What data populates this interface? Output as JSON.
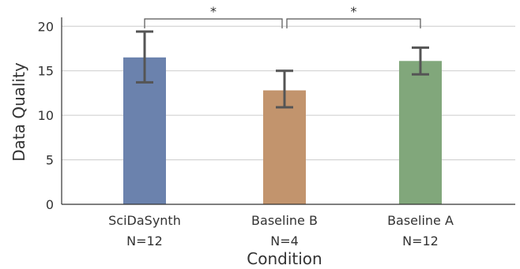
{
  "chart_data": {
    "type": "bar",
    "title": "",
    "xlabel": "Condition",
    "ylabel": "Data Quality",
    "ylim": [
      0,
      21
    ],
    "yticks": [
      0,
      5,
      10,
      15,
      20
    ],
    "grid": true,
    "categories": [
      {
        "name": "SciDaSynth",
        "n_label": "N=12",
        "value": 16.5,
        "err_low": 13.7,
        "err_high": 19.4,
        "color": "#6b82ad"
      },
      {
        "name": "Baseline B",
        "n_label": "N=4",
        "value": 12.8,
        "err_low": 10.9,
        "err_high": 15.0,
        "color": "#c2946d"
      },
      {
        "name": "Baseline A",
        "n_label": "N=12",
        "value": 16.1,
        "err_low": 14.6,
        "err_high": 17.6,
        "color": "#81a77b"
      }
    ],
    "significance": [
      {
        "from": 0,
        "to": 1,
        "label": "*"
      },
      {
        "from": 1,
        "to": 2,
        "label": "*"
      }
    ],
    "colors": {
      "errorbar": "#555555",
      "grid": "#cccccc",
      "axis": "#333333",
      "bracket": "#555555"
    }
  }
}
